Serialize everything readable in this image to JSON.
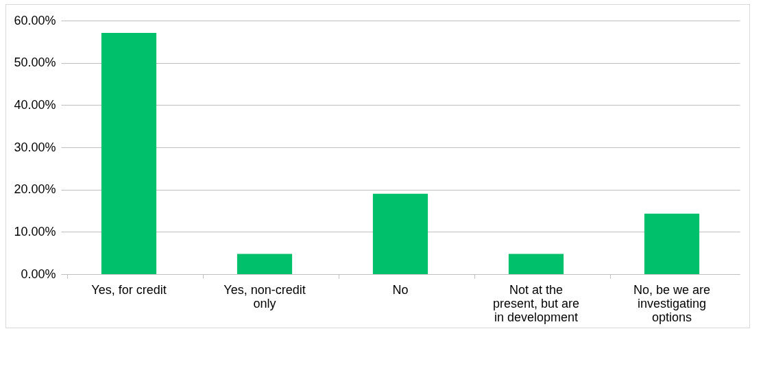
{
  "chart_data": {
    "type": "bar",
    "categories": [
      "Yes, for credit",
      "Yes, non-credit only",
      "No",
      "Not at the present, but are in development",
      "No, be we are investigating options"
    ],
    "values": [
      57.1,
      4.8,
      19.0,
      4.8,
      14.3
    ],
    "color": "#00c06b",
    "ylim": [
      0,
      60
    ],
    "yticks": [
      {
        "value": 0,
        "label": "0.00%"
      },
      {
        "value": 10,
        "label": "10.00%"
      },
      {
        "value": 20,
        "label": "20.00%"
      },
      {
        "value": 30,
        "label": "30.00%"
      },
      {
        "value": 40,
        "label": "40.00%"
      },
      {
        "value": 50,
        "label": "50.00%"
      },
      {
        "value": 60,
        "label": "60.00%"
      }
    ],
    "grid": "y"
  }
}
